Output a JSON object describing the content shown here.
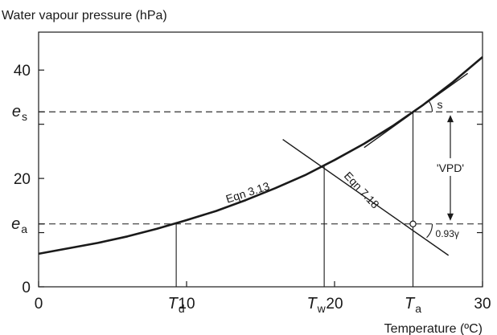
{
  "chart_data": {
    "type": "line",
    "ylabel": "Water vapour pressure (hPa)",
    "xlabel": "Temperature (ºC)",
    "xlim": [
      0,
      30
    ],
    "ylim": [
      0,
      47
    ],
    "x_ticks": [
      {
        "value": 0,
        "label": "0"
      },
      {
        "value": 10,
        "label": "10"
      },
      {
        "value": 20,
        "label": "20"
      },
      {
        "value": 30,
        "label": "30"
      }
    ],
    "x_symbols": [
      {
        "value": 9.3,
        "main": "T",
        "sub": "d"
      },
      {
        "value": 19.3,
        "main": "T",
        "sub": "w"
      },
      {
        "value": 25.3,
        "main": "T",
        "sub": "a"
      }
    ],
    "y_ticks": [
      {
        "value": 0,
        "label": "0"
      },
      {
        "value": 20,
        "label": "20"
      },
      {
        "value": 40,
        "label": "40"
      }
    ],
    "y_symbols": [
      {
        "value": 11.6,
        "main": "e",
        "sub": "a"
      },
      {
        "value": 32.3,
        "main": "e",
        "sub": "s"
      }
    ],
    "minor_y_ticks": [
      10,
      30
    ],
    "series": [
      {
        "name": "Eqn 3.13",
        "x": [
          0,
          2,
          4,
          6,
          8,
          10,
          12,
          14,
          16,
          18,
          20,
          22,
          24,
          26,
          28,
          30
        ],
        "y": [
          6.1,
          7.1,
          8.1,
          9.3,
          10.7,
          12.3,
          14.0,
          16.0,
          18.2,
          20.6,
          23.4,
          26.4,
          29.8,
          33.6,
          37.8,
          42.4
        ]
      }
    ],
    "wet_bulb_line": {
      "name": "Eqn 7.18",
      "x": [
        16.5,
        27.7
      ],
      "y": [
        27.2,
        5.8
      ]
    },
    "tangent_line": {
      "x": [
        22.0,
        29.0
      ],
      "y": [
        25.7,
        39.4
      ]
    },
    "reference_lines": {
      "es": 32.3,
      "ea": 11.6,
      "Td": 9.3,
      "Tw": 19.3,
      "Ta": 25.3,
      "wet_bulb_point": [
        19.3,
        22.4
      ],
      "open_marker": [
        25.3,
        11.6
      ]
    },
    "annotations": {
      "s": "s",
      "psychro": "0.93γ",
      "vpd": "'VPD'"
    }
  }
}
